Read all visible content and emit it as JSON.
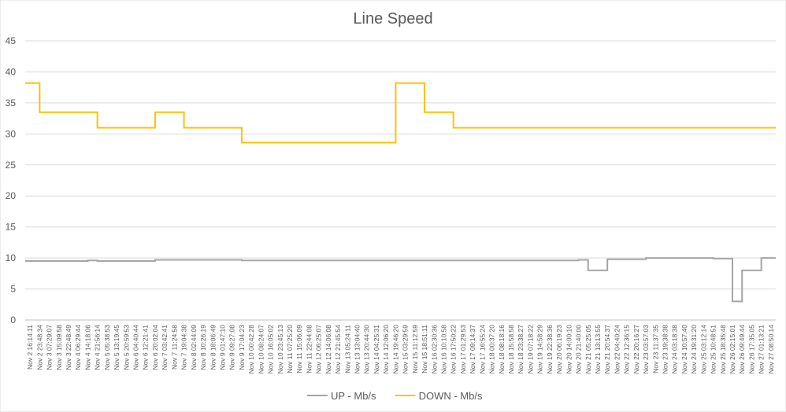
{
  "chart_data": {
    "type": "line",
    "title": "Line Speed",
    "categories": [
      "Nov 2 16:14:11",
      "Nov 2 23:48:34",
      "Nov 3 07:29:07",
      "Nov 3 15:09:58",
      "Nov 3 22:48:49",
      "Nov 4 06:29:44",
      "Nov 4 14:18:06",
      "Nov 4 21:56:14",
      "Nov 5 05:38:53",
      "Nov 5 13:19:45",
      "Nov 5 20:59:53",
      "Nov 6 04:40:44",
      "Nov 6 12:21:41",
      "Nov 6 20:02:04",
      "Nov 7 03:42:41",
      "Nov 7 11:24:58",
      "Nov 7 19:04:38",
      "Nov 8 02:44:09",
      "Nov 8 10:26:19",
      "Nov 8 18:06:49",
      "Nov 9 01:47:10",
      "Nov 9 09:27:08",
      "Nov 9 17:04:23",
      "Nov 10 00:42:28",
      "Nov 10 08:24:07",
      "Nov 10 16:05:02",
      "Nov 10 23:45:13",
      "Nov 11 07:25:20",
      "Nov 11 15:06:09",
      "Nov 11 22:44:08",
      "Nov 12 06:25:07",
      "Nov 12 14:06:08",
      "Nov 12 21:45:54",
      "Nov 13 05:24:11",
      "Nov 13 13:04:40",
      "Nov 13 20:44:30",
      "Nov 14 04:25:31",
      "Nov 14 12:06:20",
      "Nov 14 19:46:20",
      "Nov 15 03:29:59",
      "Nov 15 11:12:59",
      "Nov 15 18:51:11",
      "Nov 16 02:30:36",
      "Nov 16 10:10:58",
      "Nov 16 17:50:22",
      "Nov 17 01:29:53",
      "Nov 17 09:14:37",
      "Nov 17 16:55:24",
      "Nov 18 00:37:20",
      "Nov 18 08:18:16",
      "Nov 18 15:58:58",
      "Nov 18 23:38:27",
      "Nov 19 07:18:22",
      "Nov 19 14:58:29",
      "Nov 19 22:38:36",
      "Nov 20 06:19:23",
      "Nov 20 14:00:10",
      "Nov 20 21:40:00",
      "Nov 21 05:25:05",
      "Nov 21 13:13:55",
      "Nov 21 20:54:37",
      "Nov 22 04:40:24",
      "Nov 22 12:36:15",
      "Nov 22 20:16:27",
      "Nov 23 03:57:03",
      "Nov 23 11:37:35",
      "Nov 23 19:38:38",
      "Nov 24 03:18:38",
      "Nov 24 10:57:40",
      "Nov 24 19:31:20",
      "Nov 25 03:12:14",
      "Nov 25 10:48:51",
      "Nov 25 18:35:48",
      "Nov 26 02:15:01",
      "Nov 26 09:49:44",
      "Nov 26 17:35:05",
      "Nov 27 01:13:21",
      "Nov 27 08:50:14"
    ],
    "series": [
      {
        "name": "UP - Mb/s",
        "color": "#a5a5a5",
        "values": [
          9.5,
          9.5,
          9.5,
          9.5,
          9.5,
          9.5,
          9.5,
          9.6,
          9.5,
          9.5,
          9.5,
          9.5,
          9.5,
          9.5,
          9.7,
          9.7,
          9.7,
          9.7,
          9.7,
          9.7,
          9.7,
          9.7,
          9.7,
          9.6,
          9.6,
          9.6,
          9.6,
          9.6,
          9.6,
          9.6,
          9.6,
          9.6,
          9.6,
          9.6,
          9.6,
          9.6,
          9.6,
          9.6,
          9.6,
          9.6,
          9.6,
          9.6,
          9.6,
          9.6,
          9.6,
          9.6,
          9.6,
          9.6,
          9.6,
          9.6,
          9.6,
          9.6,
          9.6,
          9.6,
          9.6,
          9.6,
          9.6,
          9.6,
          9.7,
          8,
          8,
          9.8,
          9.8,
          9.8,
          9.8,
          10,
          10,
          10,
          10,
          10,
          10,
          10,
          9.9,
          9.9,
          3,
          8,
          8,
          10
        ]
      },
      {
        "name": "DOWN - Mb/s",
        "color": "#ffc000",
        "values": [
          38.2,
          38.2,
          33.5,
          33.5,
          33.5,
          33.5,
          33.5,
          33.5,
          31,
          31,
          31,
          31,
          31,
          31,
          33.5,
          33.5,
          33.5,
          31,
          31,
          31,
          31,
          31,
          31,
          28.6,
          28.6,
          28.6,
          28.6,
          28.6,
          28.6,
          28.6,
          28.6,
          28.6,
          28.6,
          28.6,
          28.6,
          28.6,
          28.6,
          28.6,
          28.6,
          38.2,
          38.2,
          38.2,
          33.5,
          33.5,
          33.5,
          31,
          31,
          31,
          31,
          31,
          31,
          31,
          31,
          31,
          31,
          31,
          31,
          31,
          31,
          31,
          31,
          31,
          31,
          31,
          31,
          31,
          31,
          31,
          31,
          31,
          31,
          31,
          31,
          31,
          31,
          31,
          31,
          31
        ]
      }
    ],
    "ylim": [
      0,
      45
    ],
    "yticks": [
      0,
      5,
      10,
      15,
      20,
      25,
      30,
      35,
      40,
      45
    ],
    "grid": true,
    "legend": "bottom"
  }
}
